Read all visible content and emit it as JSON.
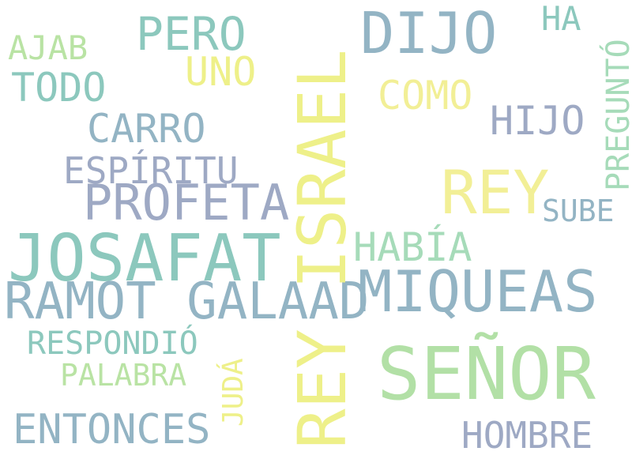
{
  "words": {
    "dijo": "DIJO",
    "pero": "PERO",
    "ha": "HA",
    "ajab": "AJAB",
    "uno": "UNO",
    "todo": "TODO",
    "como": "COMO",
    "hijo": "HIJO",
    "carro": "CARRO",
    "espiritu": "ESPÍRITU",
    "rey": "REY",
    "profeta": "PROFETA",
    "sube": "SUBE",
    "habia": "HABÍA",
    "josafat": "JOSAFAT",
    "miqueas": "MIQUEAS",
    "ramot_galaad": "RAMOT GALAAD",
    "respondio": "RESPONDIÓ",
    "senor": "SEÑOR",
    "palabra": "PALABRA",
    "entonces": "ENTONCES",
    "hombre": "HOMBRE",
    "rey_israel": "REY ISRAEL",
    "pregunto": "PREGUNTÓ",
    "juda": "JUDÁ"
  },
  "colors": {
    "teal": "#8cc8bd",
    "blue": "#93b4c4",
    "slate": "#9ea9c4",
    "yellow": "#eef089",
    "light_yellow": "#f2ef96",
    "light_green": "#b9e3a4",
    "green": "#b2e0a6",
    "mint": "#a6dbb9",
    "background": "#ffffff"
  }
}
